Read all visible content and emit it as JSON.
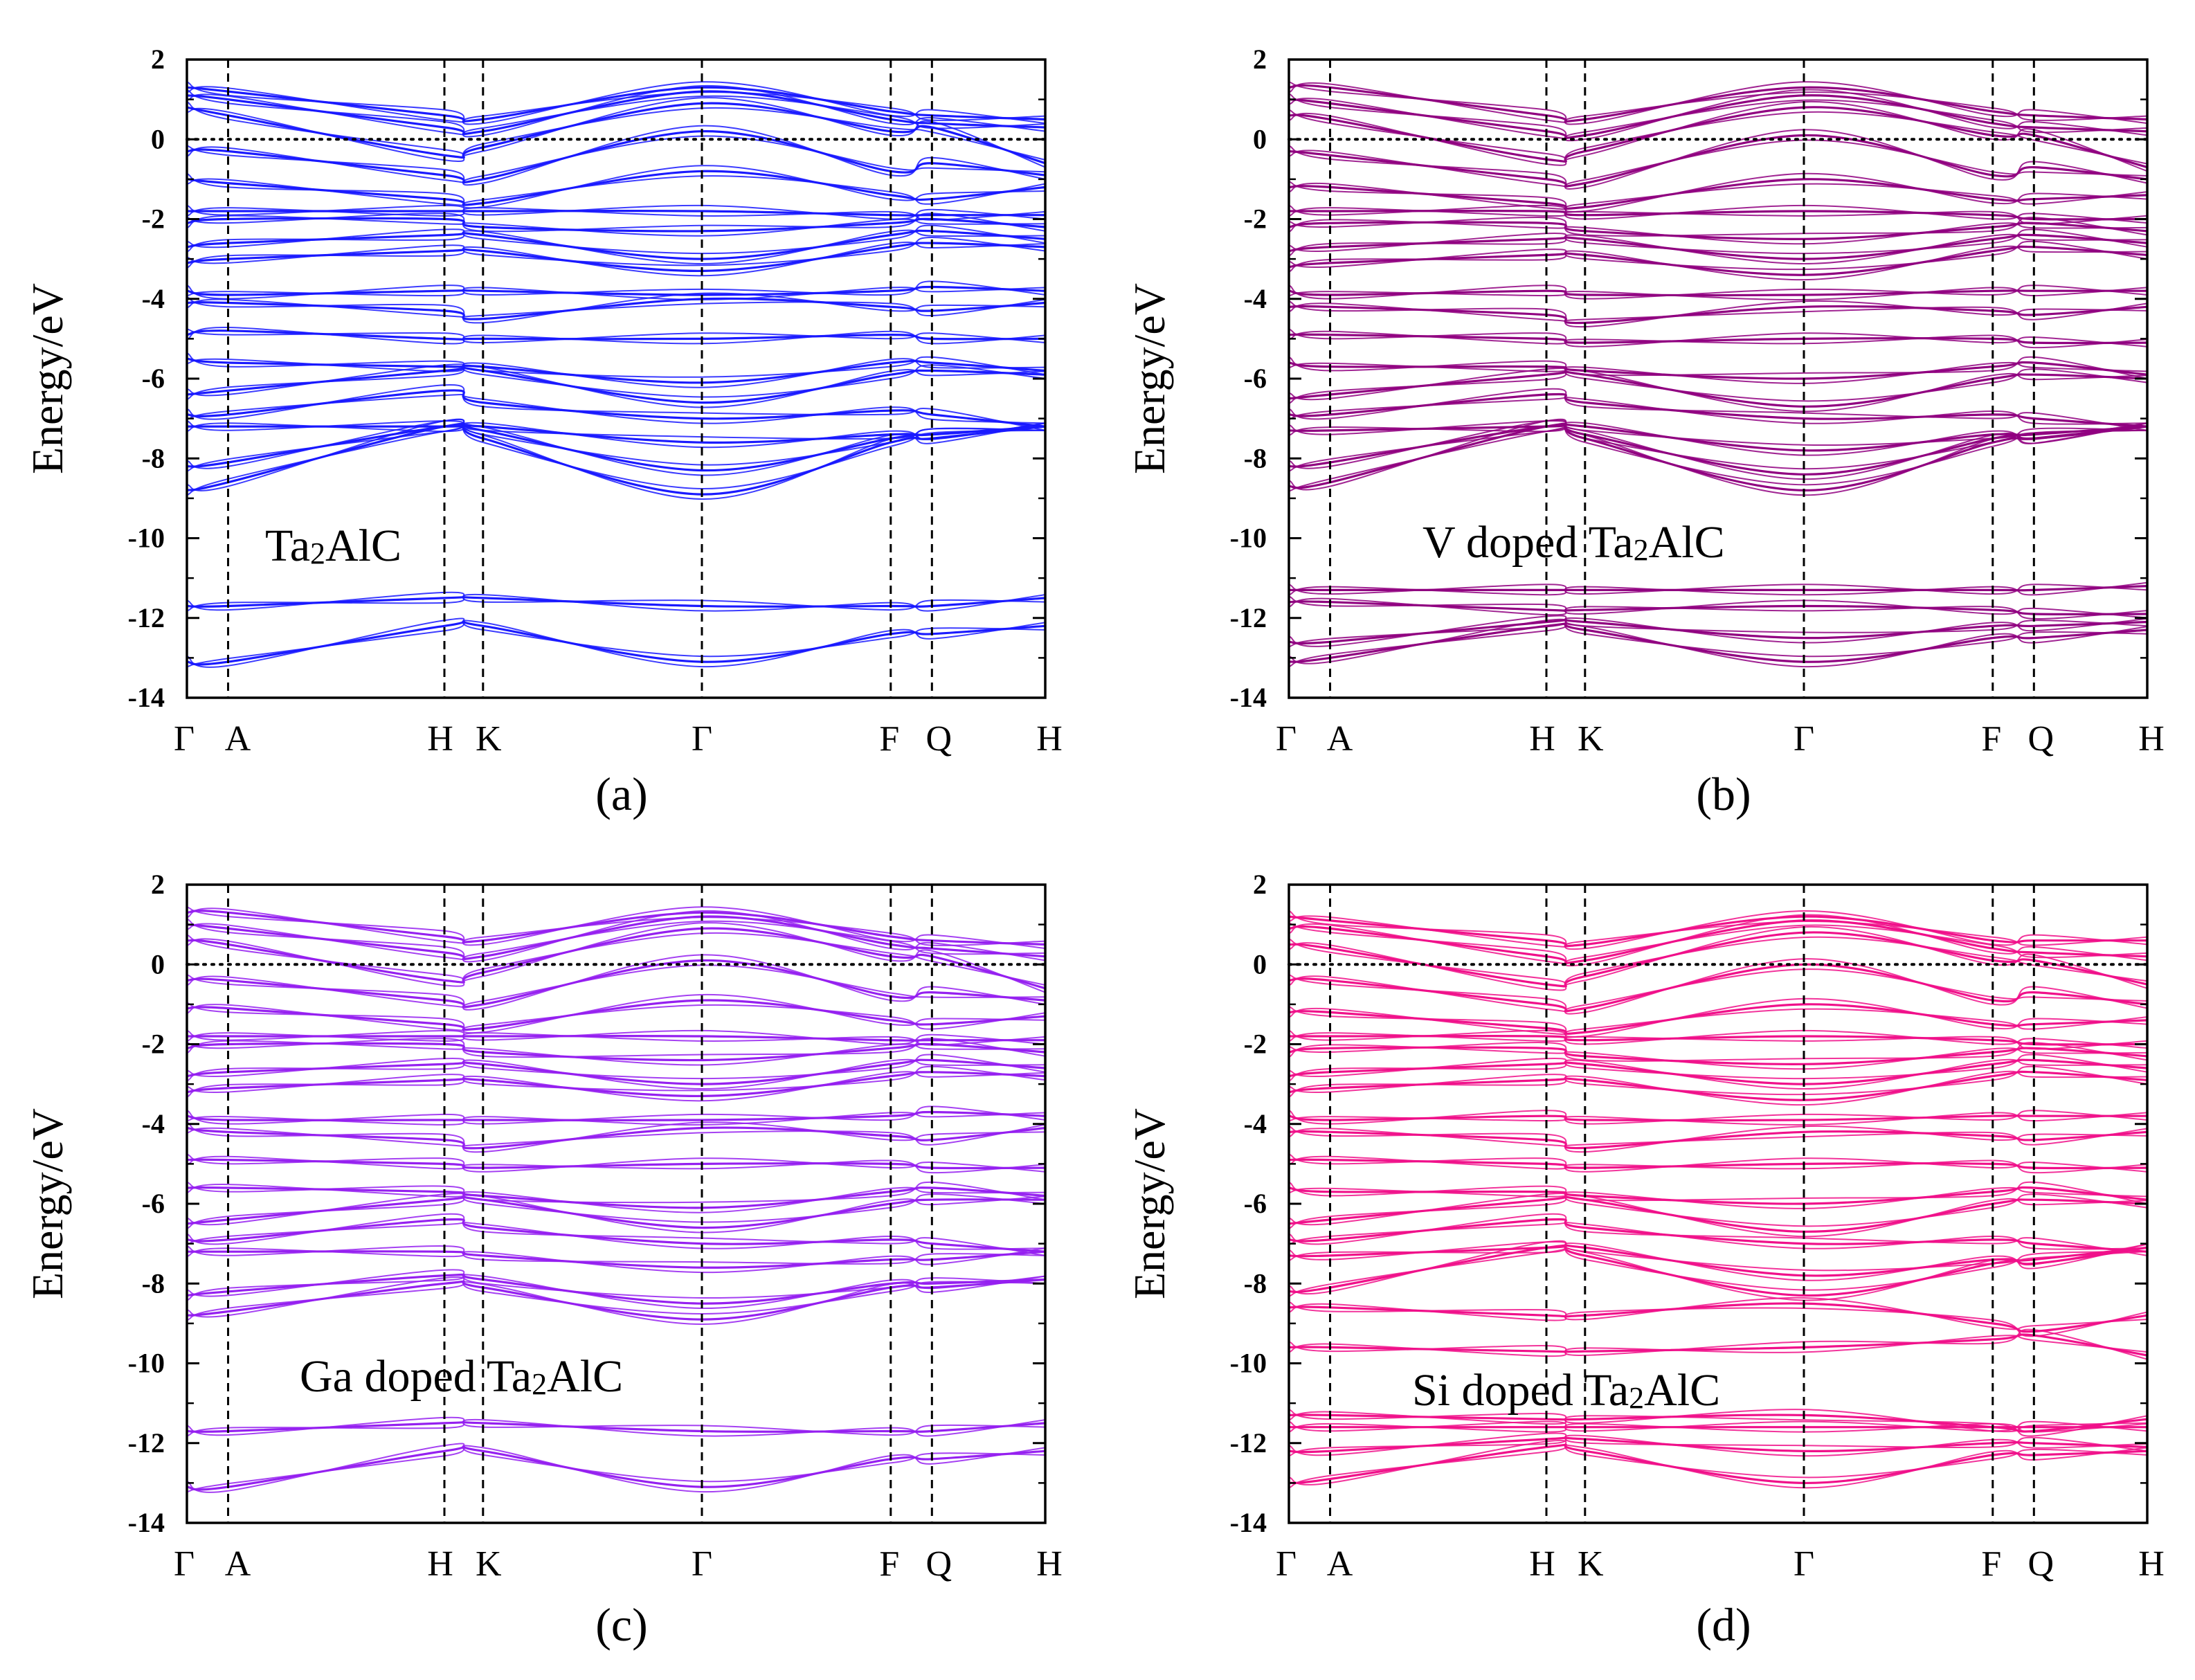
{
  "chart_data": [
    {
      "type": "line",
      "panel_label": "(a)",
      "annotation": "Ta2AlC",
      "annotation_sub": "2",
      "color": "#1a1aff",
      "ylabel": "Energy/eV",
      "ylim": [
        -14,
        2
      ],
      "yticks": [
        "2",
        "0",
        "-2",
        "-4",
        "-6",
        "-8",
        "-10",
        "-12",
        "-14"
      ],
      "kpoints": [
        {
          "label": "Γ",
          "x": 0.0
        },
        {
          "label": "A",
          "x": 0.048
        },
        {
          "label": "H",
          "x": 0.3
        },
        {
          "label": "K",
          "x": 0.345
        },
        {
          "label": "Γ",
          "x": 0.6
        },
        {
          "label": "F",
          "x": 0.82
        },
        {
          "label": "Q",
          "x": 0.868
        },
        {
          "label": "H",
          "x": 1.0
        }
      ],
      "fermi_level": 0,
      "bands": [
        [
          1.3,
          1.2,
          0.6,
          0.5,
          1.3,
          0.7,
          0.6,
          0.5
        ],
        [
          1.1,
          1.0,
          0.3,
          0.2,
          1.2,
          0.5,
          0.4,
          0.3
        ],
        [
          0.8,
          0.6,
          -0.4,
          -0.2,
          0.9,
          0.2,
          0.3,
          -0.6
        ],
        [
          -0.3,
          -0.3,
          -0.9,
          -1.0,
          0.2,
          -0.8,
          -0.6,
          -0.9
        ],
        [
          -1.0,
          -1.1,
          -1.5,
          -1.6,
          -0.8,
          -1.4,
          -1.5,
          -1.2
        ],
        [
          -1.8,
          -1.8,
          -1.8,
          -1.8,
          -1.8,
          -1.9,
          -1.9,
          -1.9
        ],
        [
          -2.1,
          -2.0,
          -2.0,
          -2.2,
          -2.3,
          -2.1,
          -2.0,
          -2.2
        ],
        [
          -2.7,
          -2.6,
          -2.4,
          -2.4,
          -3.0,
          -2.4,
          -2.3,
          -2.5
        ],
        [
          -3.1,
          -3.0,
          -2.8,
          -2.8,
          -3.3,
          -2.7,
          -2.6,
          -2.7
        ],
        [
          -3.8,
          -3.9,
          -3.8,
          -3.8,
          -3.9,
          -3.8,
          -3.7,
          -3.8
        ],
        [
          -4.1,
          -4.1,
          -4.3,
          -4.5,
          -4.0,
          -4.2,
          -4.3,
          -4.1
        ],
        [
          -4.9,
          -4.8,
          -5.0,
          -5.0,
          -5.0,
          -4.9,
          -5.0,
          -5.0
        ],
        [
          -5.5,
          -5.6,
          -5.7,
          -5.7,
          -6.1,
          -5.6,
          -5.6,
          -5.8
        ],
        [
          -6.4,
          -6.3,
          -5.8,
          -5.8,
          -6.6,
          -5.9,
          -5.8,
          -5.9
        ],
        [
          -6.9,
          -6.9,
          -6.3,
          -6.6,
          -7.0,
          -6.8,
          -6.9,
          -7.2
        ],
        [
          -7.2,
          -7.2,
          -7.2,
          -7.2,
          -7.6,
          -7.4,
          -7.4,
          -7.2
        ],
        [
          -8.2,
          -8.1,
          -7.2,
          -7.3,
          -8.3,
          -7.5,
          -7.4,
          -7.2
        ],
        [
          -8.8,
          -8.6,
          -7.2,
          -7.5,
          -8.9,
          -7.6,
          -7.5,
          -7.2
        ],
        [
          -11.7,
          -11.7,
          -11.5,
          -11.5,
          -11.7,
          -11.7,
          -11.7,
          -11.5
        ],
        [
          -13.1,
          -13.1,
          -12.2,
          -12.2,
          -13.1,
          -12.4,
          -12.4,
          -12.2
        ]
      ]
    },
    {
      "type": "line",
      "panel_label": "(b)",
      "annotation": "V doped Ta2AlC",
      "annotation_sub": "2",
      "color": "#900080",
      "ylabel": "Energy/eV",
      "ylim": [
        -14,
        2
      ],
      "yticks": [
        "2",
        "0",
        "-2",
        "-4",
        "-6",
        "-8",
        "-10",
        "-12",
        "-14"
      ],
      "kpoints": [
        {
          "label": "Γ",
          "x": 0.0
        },
        {
          "label": "A",
          "x": 0.048
        },
        {
          "label": "H",
          "x": 0.3
        },
        {
          "label": "K",
          "x": 0.345
        },
        {
          "label": "Γ",
          "x": 0.6
        },
        {
          "label": "F",
          "x": 0.82
        },
        {
          "label": "Q",
          "x": 0.868
        },
        {
          "label": "H",
          "x": 1.0
        }
      ],
      "fermi_level": 0,
      "bands": [
        [
          1.3,
          1.3,
          0.6,
          0.5,
          1.3,
          0.7,
          0.6,
          0.5
        ],
        [
          1.0,
          0.9,
          0.2,
          0.1,
          1.1,
          0.4,
          0.3,
          0.2
        ],
        [
          0.6,
          0.5,
          -0.5,
          -0.3,
          0.8,
          0.1,
          0.1,
          -0.7
        ],
        [
          -0.3,
          -0.4,
          -1.0,
          -1.1,
          0.1,
          -0.9,
          -0.7,
          -1.0
        ],
        [
          -1.2,
          -1.2,
          -1.6,
          -1.7,
          -1.0,
          -1.5,
          -1.5,
          -1.4
        ],
        [
          -1.8,
          -1.8,
          -1.8,
          -1.9,
          -1.8,
          -1.9,
          -2.0,
          -2.0
        ],
        [
          -2.2,
          -2.1,
          -2.1,
          -2.3,
          -2.5,
          -2.2,
          -2.1,
          -2.3
        ],
        [
          -2.8,
          -2.7,
          -2.5,
          -2.5,
          -3.0,
          -2.5,
          -2.4,
          -2.6
        ],
        [
          -3.2,
          -3.1,
          -2.9,
          -2.9,
          -3.4,
          -2.8,
          -2.7,
          -2.9
        ],
        [
          -3.8,
          -3.9,
          -3.8,
          -3.9,
          -3.9,
          -3.8,
          -3.8,
          -3.8
        ],
        [
          -4.2,
          -4.2,
          -4.4,
          -4.6,
          -4.2,
          -4.3,
          -4.4,
          -4.2
        ],
        [
          -4.9,
          -4.9,
          -5.0,
          -5.1,
          -5.0,
          -5.0,
          -5.1,
          -5.1
        ],
        [
          -5.6,
          -5.7,
          -5.7,
          -5.8,
          -6.0,
          -5.7,
          -5.6,
          -5.9
        ],
        [
          -6.5,
          -6.4,
          -5.9,
          -5.9,
          -6.7,
          -6.0,
          -5.9,
          -6.0
        ],
        [
          -6.9,
          -6.9,
          -6.4,
          -6.6,
          -7.0,
          -6.9,
          -7.0,
          -7.2
        ],
        [
          -7.3,
          -7.3,
          -7.2,
          -7.2,
          -7.8,
          -7.4,
          -7.5,
          -7.2
        ],
        [
          -8.2,
          -8.1,
          -7.2,
          -7.4,
          -8.4,
          -7.5,
          -7.4,
          -7.2
        ],
        [
          -8.7,
          -8.6,
          -7.2,
          -7.5,
          -8.8,
          -7.6,
          -7.5,
          -7.2
        ],
        [
          -11.3,
          -11.3,
          -11.3,
          -11.3,
          -11.3,
          -11.3,
          -11.3,
          -11.2
        ],
        [
          -11.6,
          -11.6,
          -11.8,
          -11.8,
          -11.7,
          -11.8,
          -11.9,
          -11.9
        ],
        [
          -12.6,
          -12.6,
          -12.1,
          -12.1,
          -12.5,
          -12.2,
          -12.2,
          -12.1
        ],
        [
          -13.1,
          -13.0,
          -12.2,
          -12.3,
          -13.1,
          -12.5,
          -12.5,
          -12.3
        ]
      ]
    },
    {
      "type": "line",
      "panel_label": "(c)",
      "annotation": "Ga doped Ta2AlC",
      "annotation_sub": "2",
      "color": "#9520f0",
      "ylabel": "Energy/eV",
      "ylim": [
        -14,
        2
      ],
      "yticks": [
        "2",
        "0",
        "-2",
        "-4",
        "-6",
        "-8",
        "-10",
        "-12",
        "-14"
      ],
      "kpoints": [
        {
          "label": "Γ",
          "x": 0.0
        },
        {
          "label": "A",
          "x": 0.048
        },
        {
          "label": "H",
          "x": 0.3
        },
        {
          "label": "K",
          "x": 0.345
        },
        {
          "label": "Γ",
          "x": 0.6
        },
        {
          "label": "F",
          "x": 0.82
        },
        {
          "label": "Q",
          "x": 0.868
        },
        {
          "label": "H",
          "x": 1.0
        }
      ],
      "fermi_level": 0,
      "bands": [
        [
          1.3,
          1.3,
          0.7,
          0.6,
          1.3,
          0.7,
          0.6,
          0.5
        ],
        [
          1.0,
          0.9,
          0.3,
          0.2,
          1.2,
          0.5,
          0.4,
          0.2
        ],
        [
          0.6,
          0.5,
          -0.4,
          -0.2,
          0.9,
          0.2,
          0.2,
          -0.6
        ],
        [
          -0.4,
          -0.4,
          -0.9,
          -1.0,
          0.1,
          -0.8,
          -0.7,
          -0.9
        ],
        [
          -1.1,
          -1.1,
          -1.5,
          -1.6,
          -0.9,
          -1.4,
          -1.5,
          -1.3
        ],
        [
          -1.8,
          -1.8,
          -1.8,
          -1.8,
          -1.8,
          -1.9,
          -1.9,
          -1.9
        ],
        [
          -2.1,
          -2.0,
          -2.0,
          -2.2,
          -2.4,
          -2.1,
          -2.0,
          -2.2
        ],
        [
          -2.8,
          -2.7,
          -2.5,
          -2.5,
          -3.0,
          -2.5,
          -2.4,
          -2.6
        ],
        [
          -3.2,
          -3.1,
          -2.9,
          -2.9,
          -3.3,
          -2.8,
          -2.7,
          -2.8
        ],
        [
          -3.8,
          -3.9,
          -3.9,
          -3.9,
          -3.9,
          -3.8,
          -3.7,
          -3.8
        ],
        [
          -4.1,
          -4.2,
          -4.4,
          -4.6,
          -4.1,
          -4.3,
          -4.4,
          -4.1
        ],
        [
          -4.9,
          -4.9,
          -5.0,
          -5.1,
          -5.0,
          -5.0,
          -5.1,
          -5.1
        ],
        [
          -5.6,
          -5.6,
          -5.7,
          -5.8,
          -6.1,
          -5.7,
          -5.6,
          -5.8
        ],
        [
          -6.5,
          -6.4,
          -5.9,
          -5.9,
          -6.6,
          -6.0,
          -5.9,
          -5.9
        ],
        [
          -6.9,
          -6.9,
          -6.4,
          -6.6,
          -7.0,
          -6.9,
          -7.0,
          -7.2
        ],
        [
          -7.2,
          -7.2,
          -7.2,
          -7.3,
          -7.6,
          -7.4,
          -7.4,
          -7.2
        ],
        [
          -8.3,
          -8.2,
          -7.8,
          -7.9,
          -8.5,
          -8.0,
          -8.0,
          -7.9
        ],
        [
          -8.8,
          -8.7,
          -8.0,
          -8.1,
          -8.9,
          -8.1,
          -8.1,
          -7.9
        ],
        [
          -11.7,
          -11.7,
          -11.5,
          -11.5,
          -11.7,
          -11.7,
          -11.7,
          -11.5
        ],
        [
          -13.1,
          -13.1,
          -12.2,
          -12.2,
          -13.1,
          -12.4,
          -12.4,
          -12.2
        ]
      ]
    },
    {
      "type": "line",
      "panel_label": "(d)",
      "annotation": "Si doped Ta2AlC",
      "annotation_sub": "2",
      "color": "#f0108a",
      "ylabel": "Energy/eV",
      "ylim": [
        -14,
        2
      ],
      "yticks": [
        "2",
        "0",
        "-2",
        "-4",
        "-6",
        "-8",
        "-10",
        "-12",
        "-14"
      ],
      "kpoints": [
        {
          "label": "Γ",
          "x": 0.0
        },
        {
          "label": "A",
          "x": 0.048
        },
        {
          "label": "H",
          "x": 0.3
        },
        {
          "label": "K",
          "x": 0.345
        },
        {
          "label": "Γ",
          "x": 0.6
        },
        {
          "label": "F",
          "x": 0.82
        },
        {
          "label": "Q",
          "x": 0.868
        },
        {
          "label": "H",
          "x": 1.0
        }
      ],
      "fermi_level": 0,
      "bands": [
        [
          1.2,
          1.1,
          0.6,
          0.5,
          1.2,
          0.6,
          0.6,
          0.6
        ],
        [
          0.9,
          0.9,
          0.2,
          0.1,
          1.1,
          0.4,
          0.3,
          0.2
        ],
        [
          0.5,
          0.4,
          -0.5,
          -0.3,
          0.8,
          0.1,
          0.1,
          -0.5
        ],
        [
          -0.4,
          -0.4,
          -1.0,
          -1.1,
          0.0,
          -0.9,
          -0.7,
          -1.0
        ],
        [
          -1.2,
          -1.2,
          -1.6,
          -1.7,
          -1.0,
          -1.5,
          -1.5,
          -1.4
        ],
        [
          -1.8,
          -1.8,
          -1.8,
          -1.9,
          -1.8,
          -1.9,
          -2.0,
          -2.0
        ],
        [
          -2.2,
          -2.1,
          -2.1,
          -2.3,
          -2.5,
          -2.2,
          -2.1,
          -2.3
        ],
        [
          -2.8,
          -2.7,
          -2.5,
          -2.5,
          -3.0,
          -2.5,
          -2.4,
          -2.6
        ],
        [
          -3.2,
          -3.1,
          -2.9,
          -2.9,
          -3.4,
          -2.8,
          -2.7,
          -2.9
        ],
        [
          -3.8,
          -3.9,
          -3.8,
          -3.9,
          -3.9,
          -3.8,
          -3.8,
          -3.8
        ],
        [
          -4.2,
          -4.2,
          -4.4,
          -4.6,
          -4.2,
          -4.3,
          -4.4,
          -4.2
        ],
        [
          -4.9,
          -4.9,
          -5.0,
          -5.1,
          -5.0,
          -5.0,
          -5.1,
          -5.1
        ],
        [
          -5.6,
          -5.7,
          -5.7,
          -5.8,
          -6.0,
          -5.7,
          -5.6,
          -5.9
        ],
        [
          -6.5,
          -6.4,
          -5.9,
          -5.9,
          -6.7,
          -6.0,
          -5.9,
          -6.0
        ],
        [
          -6.9,
          -6.9,
          -6.4,
          -6.6,
          -7.0,
          -6.9,
          -7.0,
          -7.2
        ],
        [
          -7.3,
          -7.3,
          -7.1,
          -7.1,
          -7.8,
          -7.4,
          -7.5,
          -7.1
        ],
        [
          -8.2,
          -8.1,
          -7.1,
          -7.3,
          -8.3,
          -7.5,
          -7.4,
          -7.1
        ],
        [
          -8.6,
          -8.6,
          -8.8,
          -8.8,
          -8.5,
          -9.0,
          -9.2,
          -8.8
        ],
        [
          -9.6,
          -9.6,
          -9.7,
          -9.7,
          -9.6,
          -9.4,
          -9.3,
          -9.8
        ],
        [
          -11.3,
          -11.3,
          -11.4,
          -11.4,
          -11.3,
          -11.6,
          -11.7,
          -11.4
        ],
        [
          -11.6,
          -11.6,
          -11.6,
          -11.6,
          -11.6,
          -11.6,
          -11.6,
          -11.6
        ],
        [
          -12.2,
          -12.2,
          -11.9,
          -11.9,
          -12.2,
          -12.0,
          -12.0,
          -12.1
        ],
        [
          -13.0,
          -12.9,
          -12.1,
          -12.2,
          -13.0,
          -12.3,
          -12.3,
          -12.2
        ]
      ]
    }
  ]
}
